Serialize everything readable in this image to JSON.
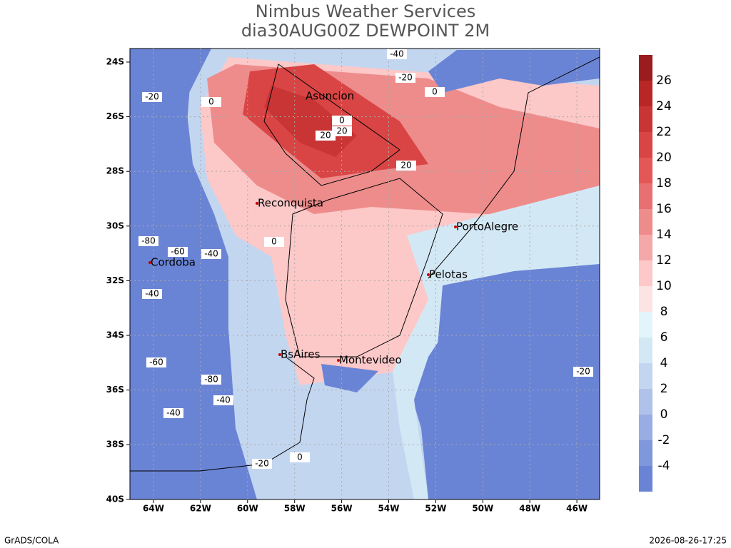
{
  "title": "Nimbus Weather Services",
  "subtitle": "dia30AUG00Z DEWPOINT 2M",
  "lat_ticks": [
    "24S",
    "26S",
    "28S",
    "30S",
    "32S",
    "34S",
    "36S",
    "38S",
    "40S"
  ],
  "lon_ticks": [
    "64W",
    "62W",
    "60W",
    "58W",
    "56W",
    "54W",
    "52W",
    "50W",
    "48W",
    "46W"
  ],
  "cities": [
    "Asuncion",
    "Reconquista",
    "PortoAlegre",
    "Cordoba",
    "Pelotas",
    "BsAires",
    "Montevideo"
  ],
  "contour_labels": [
    -40,
    -20,
    0,
    -20,
    0,
    0,
    20,
    20,
    20,
    -80,
    -60,
    -40,
    -40,
    0,
    -60,
    -80,
    -40,
    -40,
    -20,
    0,
    -20
  ],
  "colorbar": {
    "levels": [
      -4,
      -2,
      0,
      2,
      4,
      6,
      8,
      10,
      12,
      14,
      16,
      18,
      20,
      22,
      24,
      26
    ],
    "colors": [
      "#6a84d5",
      "#7f98dc",
      "#97ade3",
      "#aec2ea",
      "#c3d6f0",
      "#d3e8f5",
      "#e2f5fa",
      "#fde4e4",
      "#fcc8c8",
      "#f5a8a8",
      "#ee8c8c",
      "#e87070",
      "#e45757",
      "#d94545",
      "#c93434",
      "#b82626",
      "#9b1c1c"
    ]
  },
  "footer_left": "GrADS/COLA",
  "footer_right": "2026-08-26-17:25"
}
